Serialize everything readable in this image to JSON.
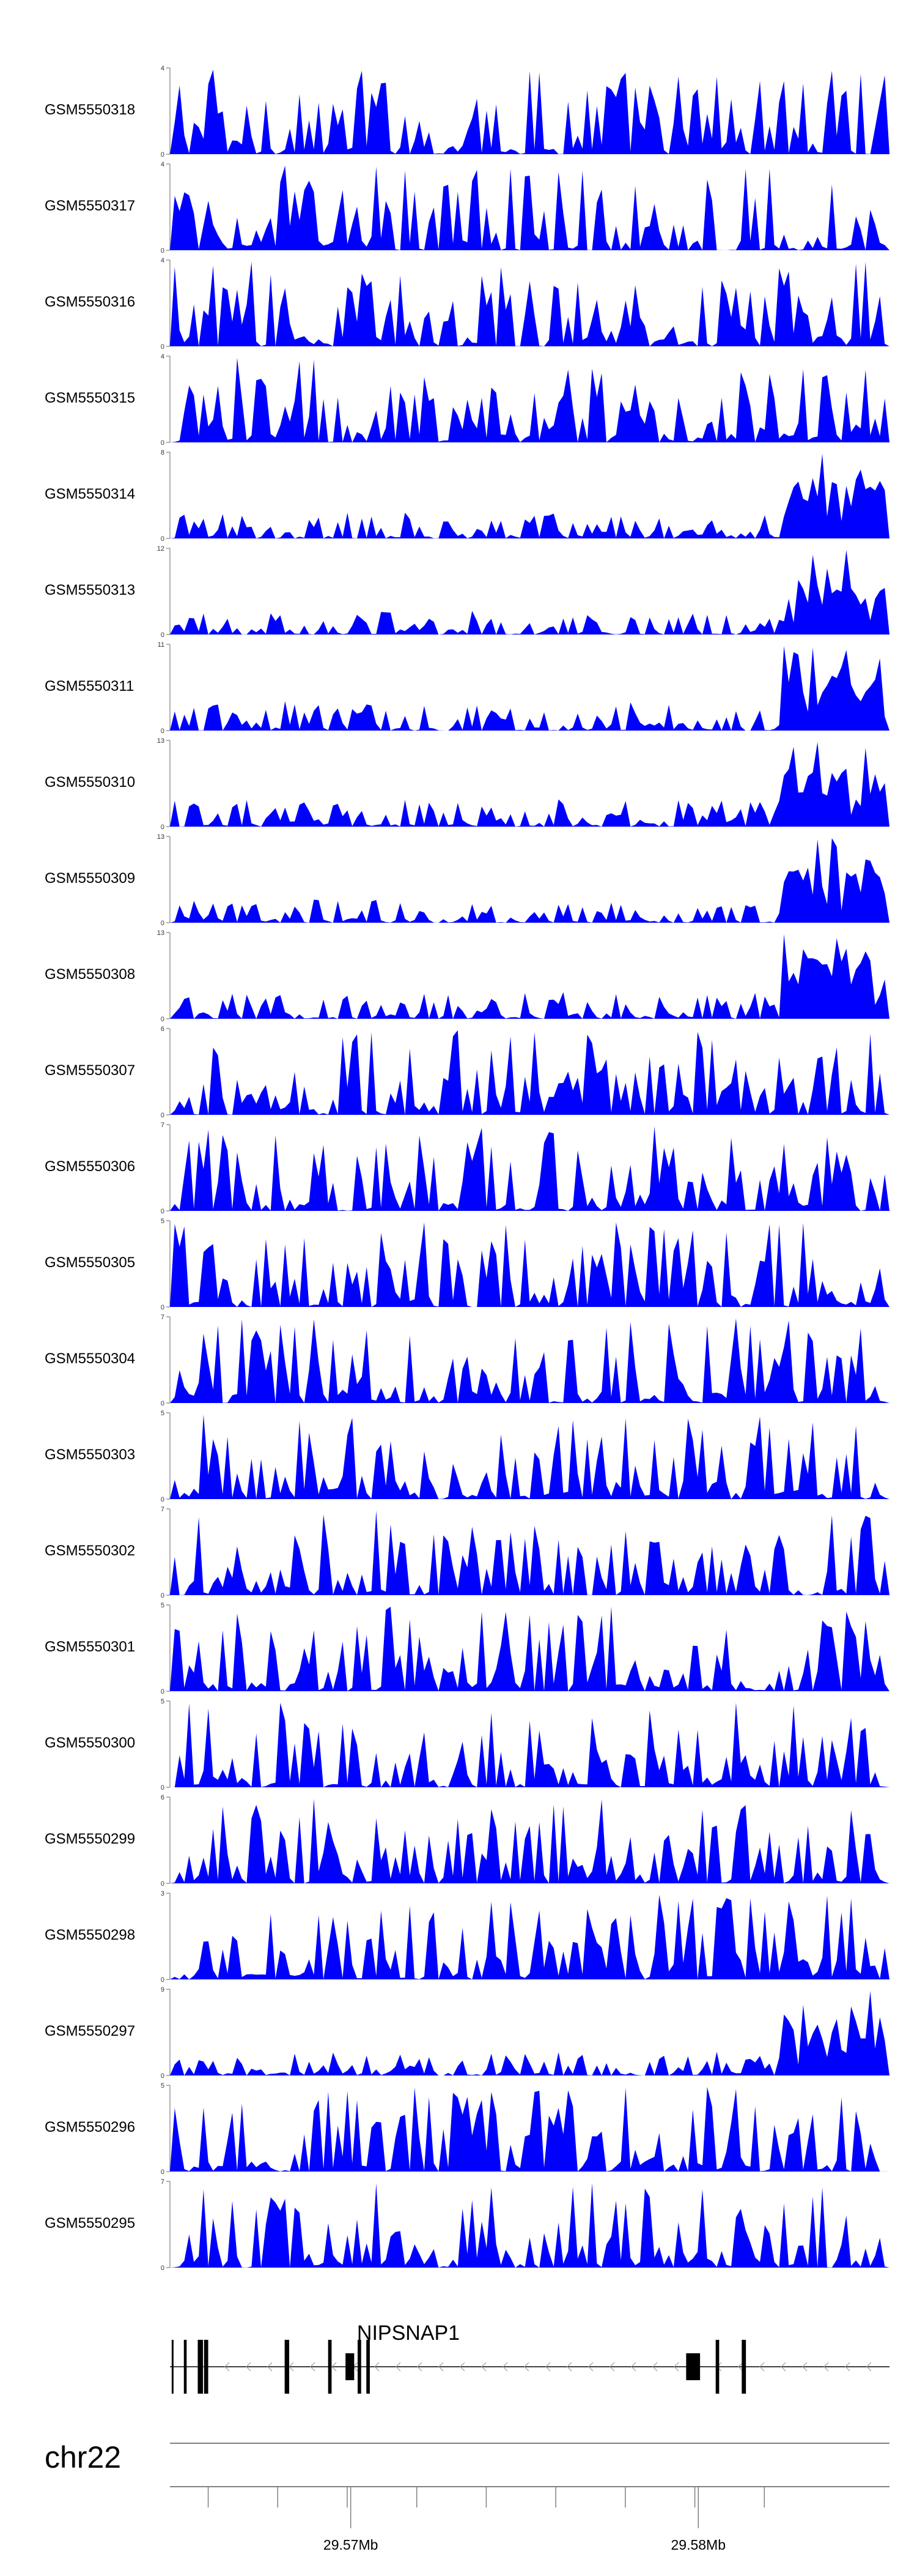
{
  "chart_data": {
    "type": "area",
    "xlim": [
      29.5648,
      29.5855
    ],
    "tracks": [
      {
        "name": "GSM5550318",
        "ymax": 4
      },
      {
        "name": "GSM5550317",
        "ymax": 4
      },
      {
        "name": "GSM5550316",
        "ymax": 4
      },
      {
        "name": "GSM5550315",
        "ymax": 4
      },
      {
        "name": "GSM5550314",
        "ymax": 8
      },
      {
        "name": "GSM5550313",
        "ymax": 12
      },
      {
        "name": "GSM5550311",
        "ymax": 11
      },
      {
        "name": "GSM5550310",
        "ymax": 13
      },
      {
        "name": "GSM5550309",
        "ymax": 13
      },
      {
        "name": "GSM5550308",
        "ymax": 13
      },
      {
        "name": "GSM5550307",
        "ymax": 6
      },
      {
        "name": "GSM5550306",
        "ymax": 7
      },
      {
        "name": "GSM5550305",
        "ymax": 5
      },
      {
        "name": "GSM5550304",
        "ymax": 7
      },
      {
        "name": "GSM5550303",
        "ymax": 5
      },
      {
        "name": "GSM5550302",
        "ymax": 7
      },
      {
        "name": "GSM5550301",
        "ymax": 5
      },
      {
        "name": "GSM5550300",
        "ymax": 5
      },
      {
        "name": "GSM5550299",
        "ymax": 6
      },
      {
        "name": "GSM5550298",
        "ymax": 3
      },
      {
        "name": "GSM5550297",
        "ymax": 9
      },
      {
        "name": "GSM5550296",
        "ymax": 5
      },
      {
        "name": "GSM5550295",
        "ymax": 7
      }
    ],
    "gene": {
      "name": "NIPSNAP1",
      "strand": "-",
      "start": 29.5648,
      "end": 29.5855,
      "exons": [
        [
          29.56485,
          29.56487
        ],
        [
          29.5652,
          29.56528
        ],
        [
          29.5656,
          29.56575
        ],
        [
          29.56578,
          29.5659
        ],
        [
          29.5681,
          29.56823
        ],
        [
          29.56935,
          29.56945
        ],
        [
          29.56985,
          29.5701
        ],
        [
          29.5702,
          29.5703
        ],
        [
          29.57045,
          29.57055
        ],
        [
          29.57965,
          29.58005
        ],
        [
          29.5805,
          29.5806
        ],
        [
          29.58125,
          29.58137
        ]
      ]
    },
    "axis": {
      "chromosome": "chr22",
      "ticks": [
        29.5659,
        29.5679,
        29.5699,
        29.5719,
        29.5739,
        29.5759,
        29.5779,
        29.5799,
        29.5819
      ],
      "tick_labels": [
        {
          "value": 29.57,
          "label": "29.57Mb"
        },
        {
          "value": 29.58,
          "label": "29.58Mb"
        }
      ]
    },
    "fill_color": "#0000ff",
    "axis_color": "#808080"
  }
}
